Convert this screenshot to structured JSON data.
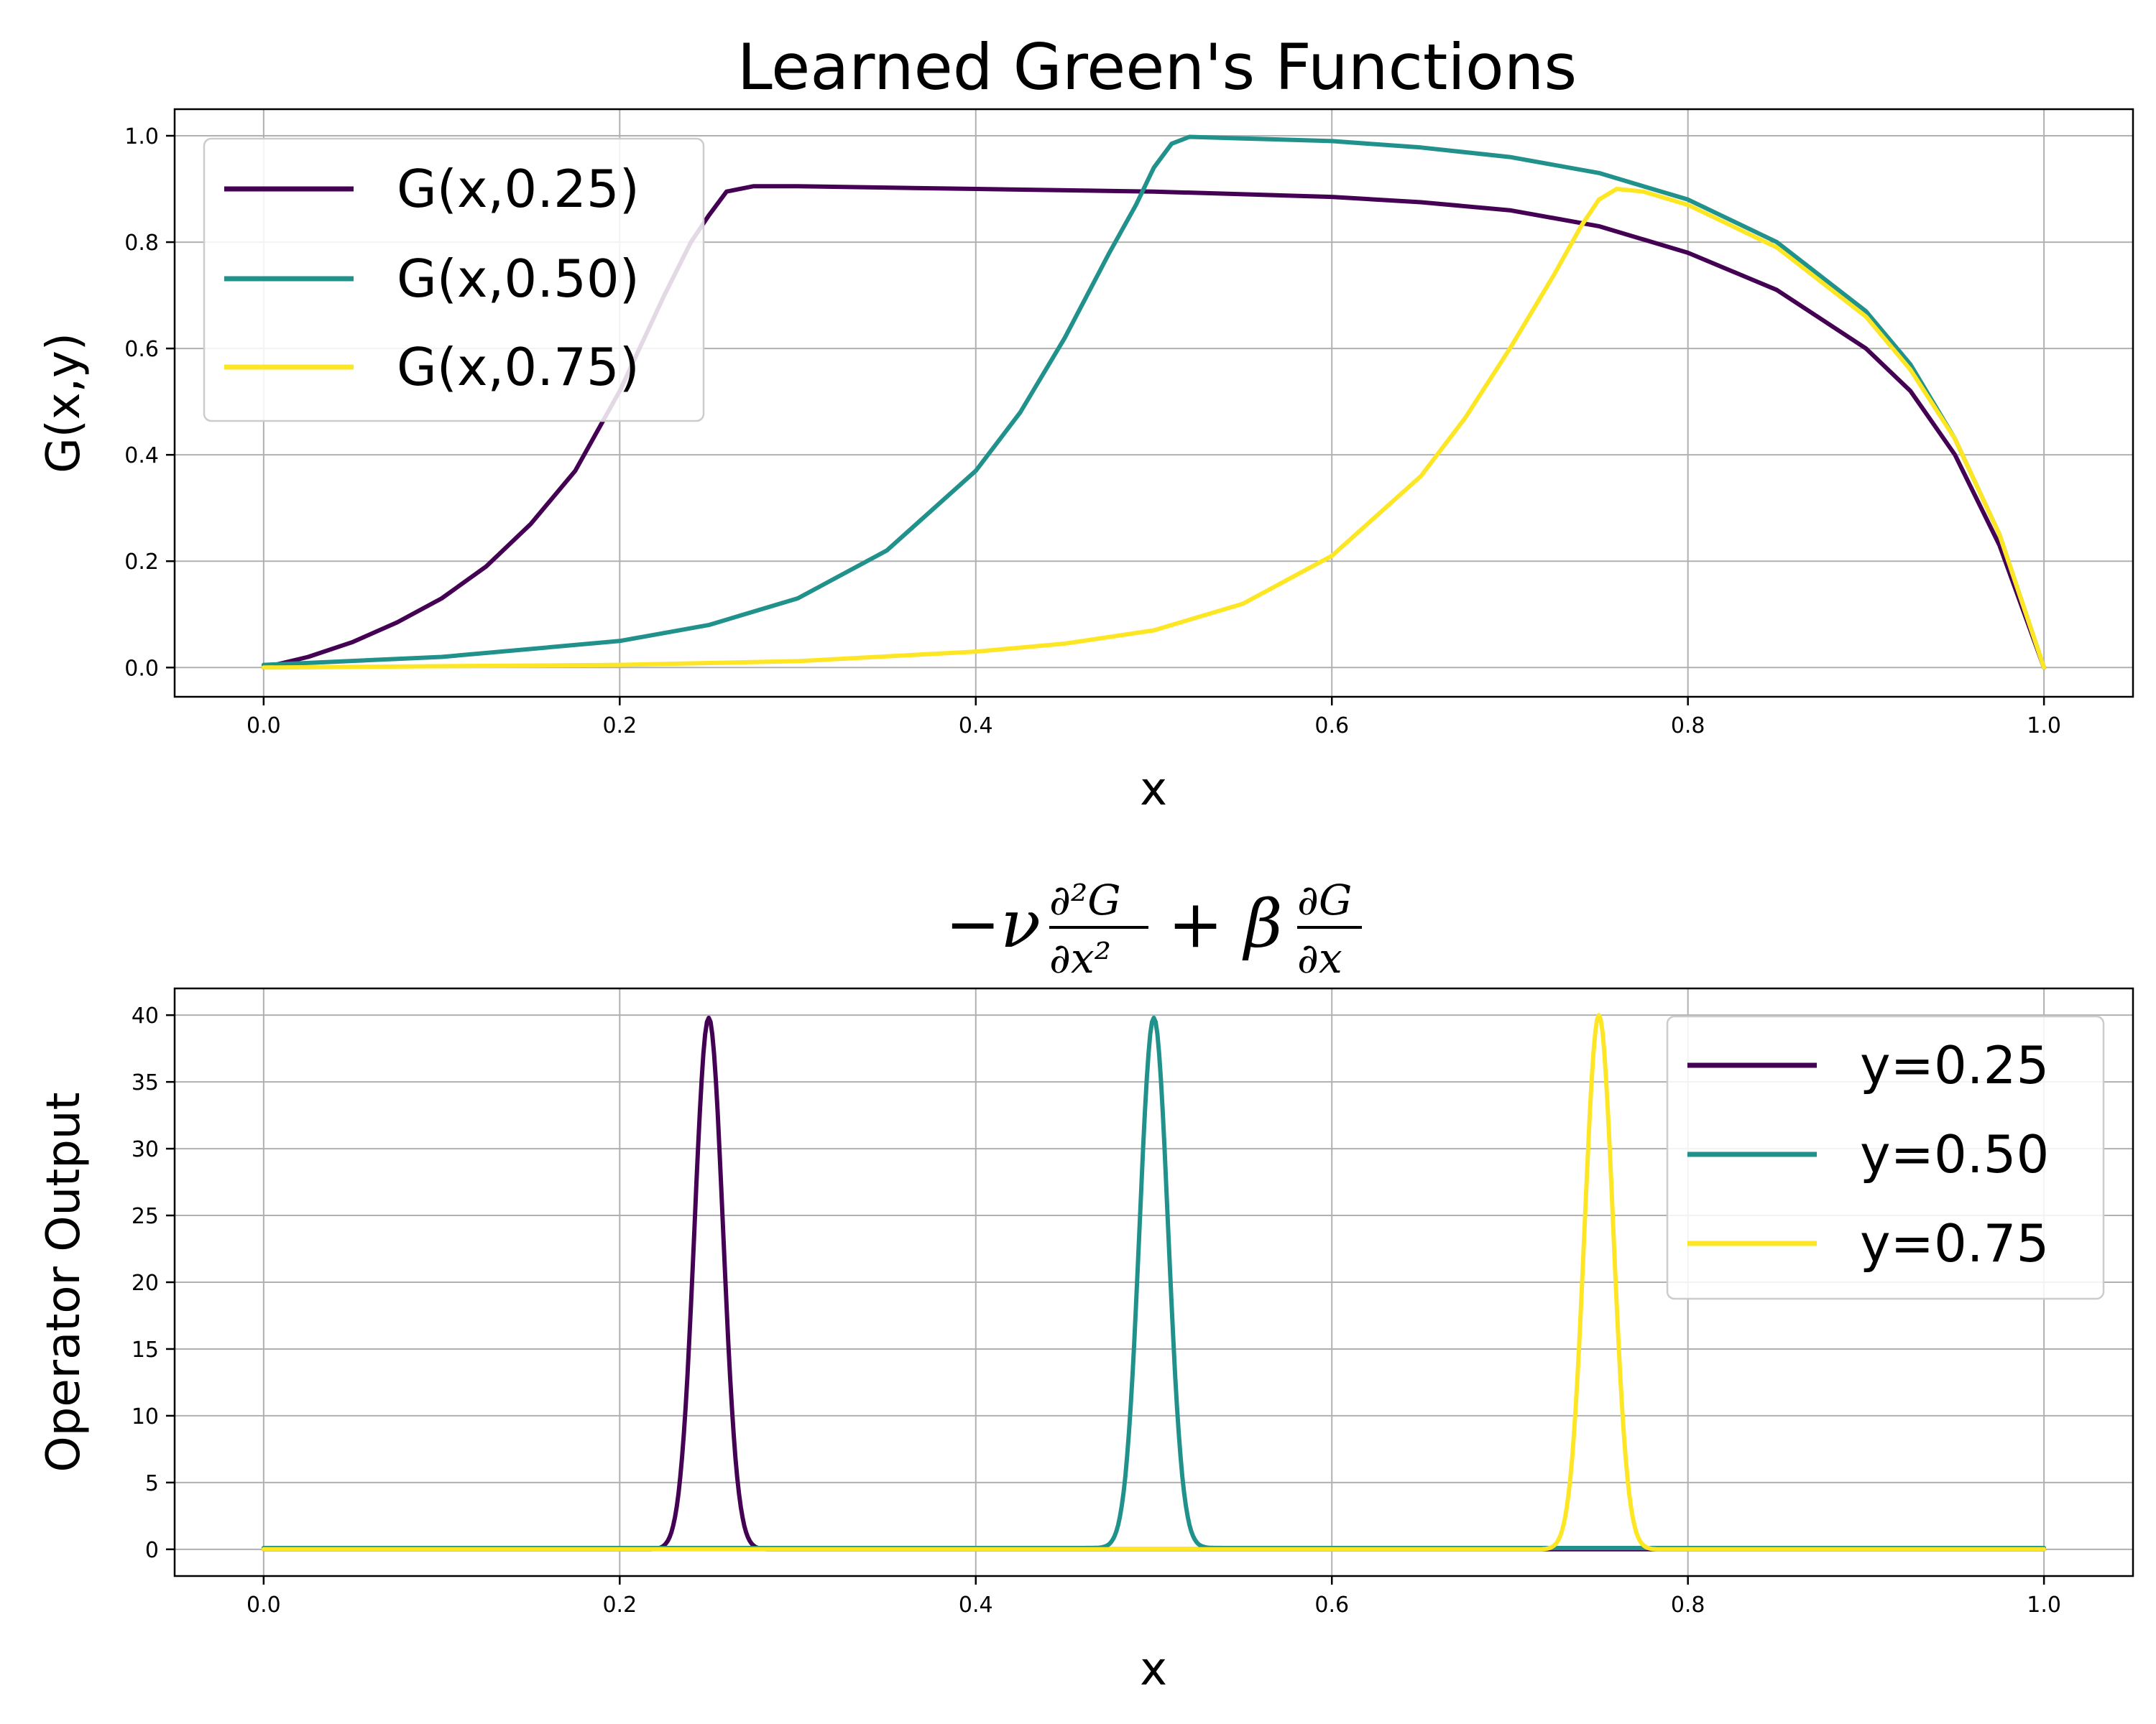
{
  "chart_data": [
    {
      "type": "line",
      "title": "Learned Green's Functions",
      "xlabel": "x",
      "ylabel": "G(x,y)",
      "xlim": [
        -0.05,
        1.05
      ],
      "ylim": [
        -0.055,
        1.05
      ],
      "xticks": [
        0.0,
        0.2,
        0.4,
        0.6,
        0.8,
        1.0
      ],
      "yticks": [
        0.0,
        0.2,
        0.4,
        0.6,
        0.8,
        1.0
      ],
      "xtick_labels": [
        "0.0",
        "0.2",
        "0.4",
        "0.6",
        "0.8",
        "1.0"
      ],
      "ytick_labels": [
        "0.0",
        "0.2",
        "0.4",
        "0.6",
        "0.8",
        "1.0"
      ],
      "grid": true,
      "legend": "upper-left",
      "series": [
        {
          "name": "G(x,0.25)",
          "color": "#440154",
          "x": [
            0.0,
            0.025,
            0.05,
            0.075,
            0.1,
            0.125,
            0.15,
            0.175,
            0.2,
            0.225,
            0.24,
            0.25,
            0.26,
            0.275,
            0.3,
            0.4,
            0.5,
            0.6,
            0.65,
            0.7,
            0.75,
            0.8,
            0.85,
            0.9,
            0.925,
            0.95,
            0.975,
            1.0
          ],
          "y": [
            0.0,
            0.02,
            0.048,
            0.085,
            0.13,
            0.19,
            0.27,
            0.37,
            0.52,
            0.7,
            0.8,
            0.85,
            0.895,
            0.905,
            0.905,
            0.9,
            0.895,
            0.885,
            0.875,
            0.86,
            0.83,
            0.78,
            0.71,
            0.6,
            0.52,
            0.4,
            0.23,
            0.0
          ]
        },
        {
          "name": "G(x,0.50)",
          "color": "#21918c",
          "x": [
            0.0,
            0.1,
            0.2,
            0.25,
            0.3,
            0.35,
            0.4,
            0.425,
            0.45,
            0.475,
            0.49,
            0.5,
            0.51,
            0.52,
            0.55,
            0.6,
            0.65,
            0.7,
            0.75,
            0.8,
            0.85,
            0.9,
            0.925,
            0.95,
            0.975,
            1.0
          ],
          "y": [
            0.005,
            0.02,
            0.05,
            0.08,
            0.13,
            0.22,
            0.37,
            0.48,
            0.62,
            0.78,
            0.87,
            0.94,
            0.985,
            0.998,
            0.995,
            0.99,
            0.978,
            0.96,
            0.93,
            0.88,
            0.8,
            0.67,
            0.57,
            0.43,
            0.25,
            0.0
          ]
        },
        {
          "name": "G(x,0.75)",
          "color": "#fde725",
          "x": [
            0.0,
            0.2,
            0.3,
            0.4,
            0.45,
            0.5,
            0.55,
            0.6,
            0.65,
            0.675,
            0.7,
            0.725,
            0.74,
            0.75,
            0.76,
            0.775,
            0.8,
            0.85,
            0.9,
            0.925,
            0.95,
            0.975,
            1.0
          ],
          "y": [
            0.0,
            0.005,
            0.012,
            0.03,
            0.045,
            0.07,
            0.12,
            0.21,
            0.36,
            0.47,
            0.6,
            0.74,
            0.83,
            0.88,
            0.9,
            0.895,
            0.87,
            0.79,
            0.66,
            0.56,
            0.43,
            0.25,
            0.0
          ]
        }
      ]
    },
    {
      "type": "line",
      "title_latex": "−ν ∂²G/∂x² + β ∂G/∂x",
      "xlabel": "x",
      "ylabel": "Operator Output",
      "xlim": [
        -0.05,
        1.05
      ],
      "ylim": [
        -2.0,
        42.0
      ],
      "xticks": [
        0.0,
        0.2,
        0.4,
        0.6,
        0.8,
        1.0
      ],
      "yticks": [
        0,
        5,
        10,
        15,
        20,
        25,
        30,
        35,
        40
      ],
      "xtick_labels": [
        "0.0",
        "0.2",
        "0.4",
        "0.6",
        "0.8",
        "1.0"
      ],
      "ytick_labels": [
        "0",
        "5",
        "10",
        "15",
        "20",
        "25",
        "30",
        "35",
        "40"
      ],
      "grid": true,
      "legend": "upper-right",
      "peak_sigma": 0.008,
      "series": [
        {
          "name": "y=0.25",
          "color": "#440154",
          "peak_center": 0.25,
          "peak_height": 39.8,
          "baseline": 0.0
        },
        {
          "name": "y=0.50",
          "color": "#21918c",
          "peak_center": 0.5,
          "peak_height": 39.8,
          "baseline": 0.1
        },
        {
          "name": "y=0.75",
          "color": "#fde725",
          "peak_center": 0.75,
          "peak_height": 40.0,
          "baseline": 0.0
        }
      ]
    }
  ]
}
